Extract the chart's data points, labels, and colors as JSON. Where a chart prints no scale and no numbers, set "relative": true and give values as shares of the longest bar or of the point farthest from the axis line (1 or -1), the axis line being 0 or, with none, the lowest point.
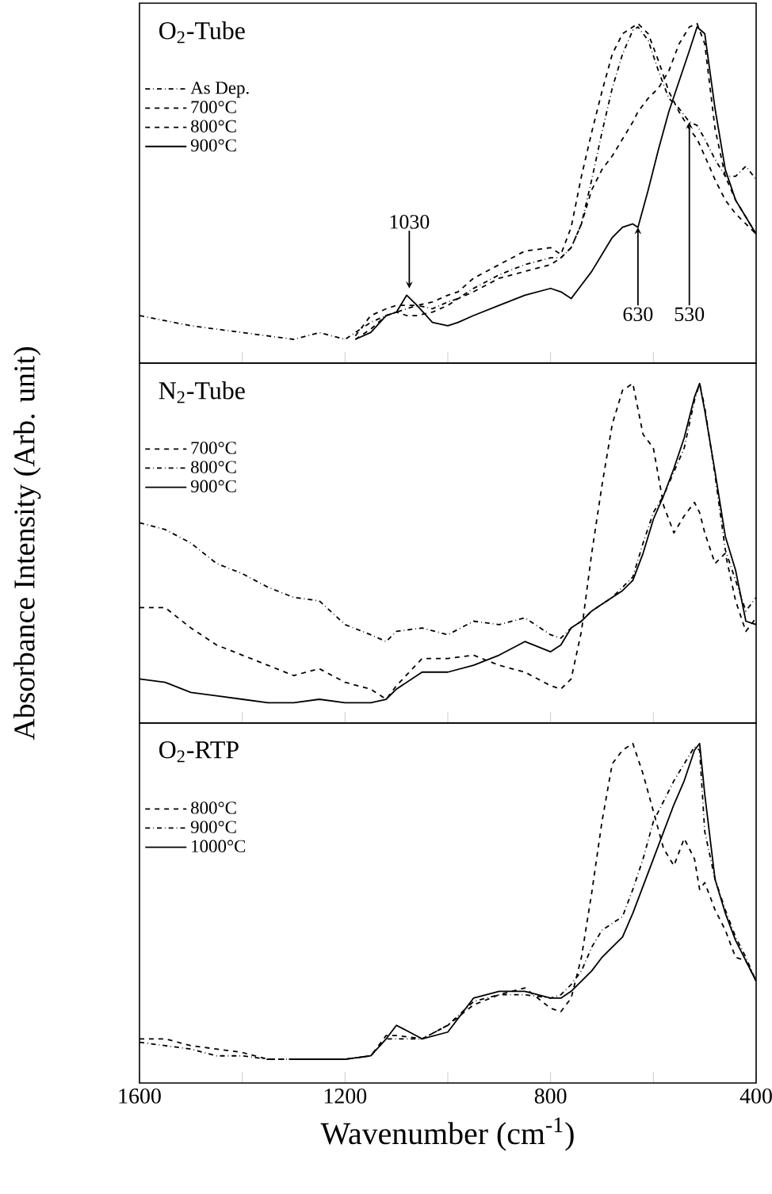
{
  "chart_data": [
    {
      "type": "line",
      "title": "O$_{2}$-Tube",
      "relative": true,
      "legend": "top left",
      "tick_labels": false,
      "xlim": [
        1600,
        400
      ],
      "xticks": [
        1600,
        1400,
        1200,
        1000,
        800,
        600,
        400
      ],
      "x": [
        1600,
        1500,
        1400,
        1300,
        1250,
        1200,
        1180,
        1150,
        1120,
        1100,
        1080,
        1060,
        1030,
        1000,
        980,
        950,
        900,
        850,
        800,
        780,
        760,
        740,
        720,
        700,
        680,
        660,
        640,
        630,
        610,
        590,
        570,
        550,
        530,
        515,
        500,
        480,
        460,
        440,
        420,
        400
      ],
      "series": [
        {
          "name": "As Dep.",
          "color": "#000000",
          "line_style": "dashdot",
          "values": [
            0.14,
            0.11,
            0.09,
            0.07,
            0.09,
            0.07,
            0.09,
            0.12,
            0.14,
            0.15,
            0.16,
            0.17,
            0.16,
            0.18,
            0.19,
            0.22,
            0.26,
            0.29,
            0.31,
            0.31,
            0.34,
            0.41,
            0.54,
            0.68,
            0.81,
            0.91,
            0.98,
            0.99,
            0.95,
            0.86,
            0.78,
            0.75,
            0.71,
            0.7,
            0.66,
            0.6,
            0.55,
            0.55,
            0.58,
            0.54
          ]
        },
        {
          "name": "700°C",
          "color": "#000000",
          "line_style": "dashed",
          "values": [
            null,
            null,
            null,
            null,
            null,
            null,
            0.08,
            0.14,
            0.16,
            0.17,
            0.17,
            0.17,
            0.18,
            0.2,
            0.21,
            0.25,
            0.29,
            0.33,
            0.34,
            0.32,
            0.4,
            0.55,
            0.68,
            0.8,
            0.91,
            0.97,
            0.99,
            1.0,
            0.97,
            0.89,
            0.8,
            0.74,
            0.69,
            0.66,
            0.61,
            0.54,
            0.48,
            0.44,
            0.41,
            0.38
          ]
        },
        {
          "name": "800°C",
          "color": "#000000",
          "line_style": "dashed",
          "values": [
            null,
            null,
            null,
            null,
            null,
            null,
            0.07,
            0.1,
            0.14,
            0.15,
            0.14,
            0.14,
            0.15,
            0.17,
            0.19,
            0.21,
            0.25,
            0.27,
            0.29,
            0.31,
            0.34,
            0.41,
            0.51,
            0.57,
            0.61,
            0.66,
            0.71,
            0.74,
            0.78,
            0.81,
            0.86,
            0.94,
            0.99,
            1.0,
            0.94,
            0.69,
            0.55,
            0.48,
            0.43,
            0.38
          ]
        },
        {
          "name": "900°C",
          "color": "#000000",
          "line_style": "solid",
          "values": [
            null,
            null,
            null,
            null,
            null,
            null,
            0.07,
            0.09,
            0.14,
            0.15,
            0.2,
            0.17,
            0.12,
            0.11,
            0.12,
            0.14,
            0.17,
            0.2,
            0.22,
            0.21,
            0.19,
            0.23,
            0.27,
            0.32,
            0.37,
            0.4,
            0.41,
            0.4,
            0.51,
            0.63,
            0.74,
            0.83,
            0.92,
            0.99,
            0.97,
            0.75,
            0.57,
            0.48,
            0.43,
            0.38
          ]
        }
      ],
      "annotations": [
        {
          "text": "1030",
          "x": 1075,
          "y": 0.22
        },
        {
          "text": "630",
          "x": 630,
          "y": 0.4
        },
        {
          "text": "530",
          "x": 530,
          "y": 0.71
        }
      ]
    },
    {
      "type": "line",
      "title": "N$_{2}$-Tube",
      "relative": true,
      "legend": "top left",
      "tick_labels": false,
      "xlim": [
        1600,
        400
      ],
      "xticks": [
        1600,
        1400,
        1200,
        1000,
        800,
        600,
        400
      ],
      "ylabel": "Absorbance Intensity (Arb. unit)",
      "x": [
        1600,
        1550,
        1500,
        1450,
        1400,
        1350,
        1300,
        1250,
        1200,
        1150,
        1120,
        1100,
        1050,
        1000,
        950,
        900,
        850,
        800,
        780,
        760,
        740,
        720,
        700,
        680,
        660,
        640,
        620,
        600,
        580,
        560,
        540,
        520,
        510,
        500,
        480,
        460,
        440,
        420,
        400
      ],
      "series": [
        {
          "name": "700°C",
          "color": "#000000",
          "line_style": "dashed",
          "values": [
            0.34,
            0.34,
            0.28,
            0.23,
            0.2,
            0.17,
            0.14,
            0.16,
            0.12,
            0.1,
            0.07,
            0.11,
            0.19,
            0.19,
            0.2,
            0.17,
            0.15,
            0.11,
            0.1,
            0.13,
            0.27,
            0.5,
            0.7,
            0.88,
            0.98,
            1.0,
            0.85,
            0.81,
            0.64,
            0.56,
            0.61,
            0.65,
            0.62,
            0.56,
            0.47,
            0.5,
            0.36,
            0.27,
            0.31
          ]
        },
        {
          "name": "800°C",
          "color": "#000000",
          "line_style": "dashdot",
          "values": [
            0.59,
            0.57,
            0.53,
            0.47,
            0.44,
            0.4,
            0.37,
            0.36,
            0.29,
            0.26,
            0.24,
            0.27,
            0.28,
            0.26,
            0.3,
            0.29,
            0.31,
            0.26,
            0.25,
            0.28,
            0.3,
            0.33,
            0.35,
            0.37,
            0.4,
            0.43,
            0.53,
            0.62,
            0.67,
            0.74,
            0.81,
            0.95,
            1.0,
            0.93,
            0.73,
            0.51,
            0.42,
            0.33,
            0.37
          ]
        },
        {
          "name": "900°C",
          "color": "#000000",
          "line_style": "solid",
          "values": [
            0.13,
            0.12,
            0.09,
            0.08,
            0.07,
            0.06,
            0.06,
            0.07,
            0.06,
            0.06,
            0.07,
            0.1,
            0.15,
            0.15,
            0.17,
            0.2,
            0.24,
            0.21,
            0.23,
            0.28,
            0.3,
            0.33,
            0.35,
            0.37,
            0.39,
            0.42,
            0.5,
            0.6,
            0.67,
            0.75,
            0.84,
            0.96,
            1.0,
            0.92,
            0.74,
            0.55,
            0.45,
            0.3,
            0.29
          ]
        }
      ]
    },
    {
      "type": "line",
      "title": "O$_{2}$-RTP",
      "relative": true,
      "legend": "top left",
      "tick_labels": "x",
      "xlim": [
        1600,
        400
      ],
      "xticks": [
        1600,
        {
          "value": 1400,
          "label": null
        },
        1200,
        {
          "value": 1000,
          "label": null
        },
        800,
        {
          "value": 600,
          "label": null
        },
        400
      ],
      "xlabel": "Wavenumber (cm$^{-1}$)",
      "x": [
        1600,
        1550,
        1500,
        1450,
        1400,
        1350,
        1300,
        1250,
        1200,
        1150,
        1120,
        1100,
        1050,
        1000,
        950,
        900,
        850,
        800,
        780,
        760,
        740,
        720,
        700,
        680,
        660,
        640,
        620,
        600,
        580,
        560,
        540,
        520,
        510,
        500,
        480,
        460,
        440,
        420,
        400
      ],
      "series": [
        {
          "name": "800°C",
          "color": "#000000",
          "line_style": "dashed",
          "values": [
            0.13,
            0.13,
            0.11,
            0.1,
            0.09,
            0.07,
            0.07,
            0.07,
            0.07,
            0.08,
            0.14,
            0.14,
            0.13,
            0.17,
            0.23,
            0.26,
            0.28,
            0.22,
            0.21,
            0.25,
            0.37,
            0.56,
            0.77,
            0.94,
            0.98,
            1.0,
            0.91,
            0.8,
            0.69,
            0.64,
            0.72,
            0.66,
            0.57,
            0.59,
            0.51,
            0.45,
            0.37,
            0.36,
            0.3
          ]
        },
        {
          "name": "900°C",
          "color": "#000000",
          "line_style": "dashdot",
          "values": [
            0.12,
            0.11,
            0.1,
            0.08,
            0.08,
            0.07,
            0.07,
            0.07,
            0.07,
            0.08,
            0.13,
            0.13,
            0.13,
            0.17,
            0.24,
            0.26,
            0.26,
            0.25,
            0.26,
            0.29,
            0.33,
            0.4,
            0.45,
            0.47,
            0.49,
            0.57,
            0.66,
            0.77,
            0.83,
            0.89,
            0.94,
            0.99,
            0.98,
            0.74,
            0.6,
            0.51,
            0.43,
            0.37,
            0.3
          ]
        },
        {
          "name": "1000°C",
          "color": "#000000",
          "line_style": "solid",
          "values": [
            null,
            null,
            null,
            null,
            null,
            null,
            0.07,
            0.07,
            0.07,
            0.08,
            0.13,
            0.17,
            0.13,
            0.15,
            0.25,
            0.27,
            0.27,
            0.25,
            0.25,
            0.27,
            0.3,
            0.33,
            0.37,
            0.4,
            0.43,
            0.5,
            0.58,
            0.66,
            0.74,
            0.82,
            0.89,
            0.98,
            1.0,
            0.85,
            0.6,
            0.5,
            0.42,
            0.36,
            0.3
          ]
        }
      ]
    }
  ]
}
